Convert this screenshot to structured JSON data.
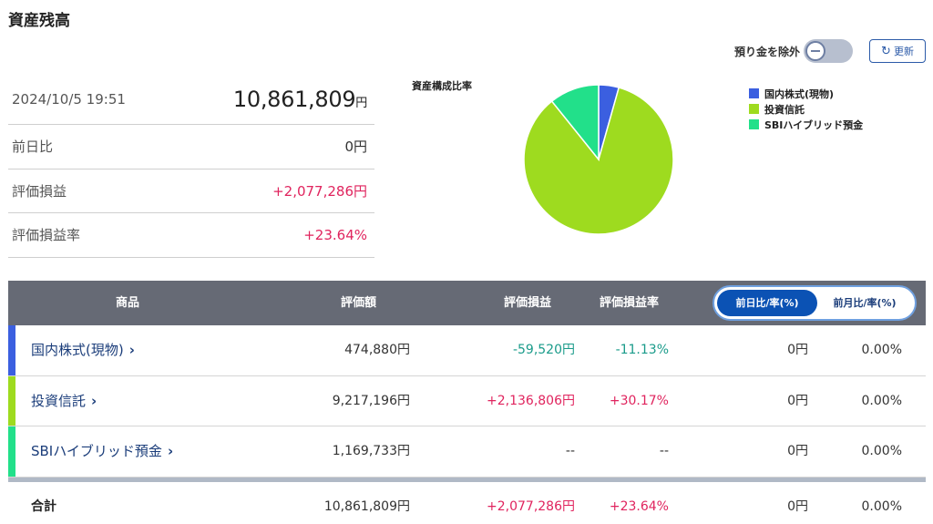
{
  "page": {
    "title": "資産残高"
  },
  "controls": {
    "exclude_label": "預り金を除外",
    "refresh_label": "更新"
  },
  "summary": {
    "datetime": "2024/10/5 19:51",
    "total_value": "10,861,809",
    "total_unit": "円",
    "rows": [
      {
        "label": "前日比",
        "value": "0円"
      },
      {
        "label": "評価損益",
        "value": "+2,077,286円"
      },
      {
        "label": "評価損益率",
        "value": "+23.64%"
      }
    ]
  },
  "pie": {
    "title": "資産構成比率",
    "legend": [
      {
        "label": "国内株式(現物)",
        "color": "#3b5fe0"
      },
      {
        "label": "投資信託",
        "color": "#9edb1f"
      },
      {
        "label": "SBIハイブリッド預金",
        "color": "#22e08a"
      }
    ]
  },
  "chart_data": {
    "type": "pie",
    "title": "資産構成比率",
    "categories": [
      "国内株式(現物)",
      "投資信託",
      "SBIハイブリッド預金"
    ],
    "values": [
      474880,
      9217196,
      1169733
    ],
    "colors": [
      "#3b5fe0",
      "#9edb1f",
      "#22e08a"
    ],
    "legend": "right"
  },
  "table": {
    "headers": {
      "product": "商品",
      "value": "評価額",
      "pl": "評価損益",
      "pl_rate": "評価損益率"
    },
    "tabs": {
      "active": "前日比/率(%)",
      "inactive": "前月比/率(%)"
    },
    "rows": [
      {
        "name": "国内株式(現物)",
        "chevron": "›",
        "color": "#3b5fe0",
        "value": "474,880円",
        "pl": "-59,520円",
        "pl_rate": "-11.13%",
        "diff": "0円",
        "diff_rate": "0.00%"
      },
      {
        "name": "投資信託",
        "chevron": "›",
        "color": "#9edb1f",
        "value": "9,217,196円",
        "pl": "+2,136,806円",
        "pl_rate": "+30.17%",
        "diff": "0円",
        "diff_rate": "0.00%"
      },
      {
        "name": "SBIハイブリッド預金",
        "chevron": "›",
        "color": "#22e08a",
        "value": "1,169,733円",
        "pl": "--",
        "pl_rate": "--",
        "diff": "0円",
        "diff_rate": "0.00%"
      }
    ],
    "total": {
      "label": "合計",
      "value": "10,861,809円",
      "pl": "+2,077,286円",
      "pl_rate": "+23.64%",
      "diff": "0円",
      "diff_rate": "0.00%"
    }
  }
}
